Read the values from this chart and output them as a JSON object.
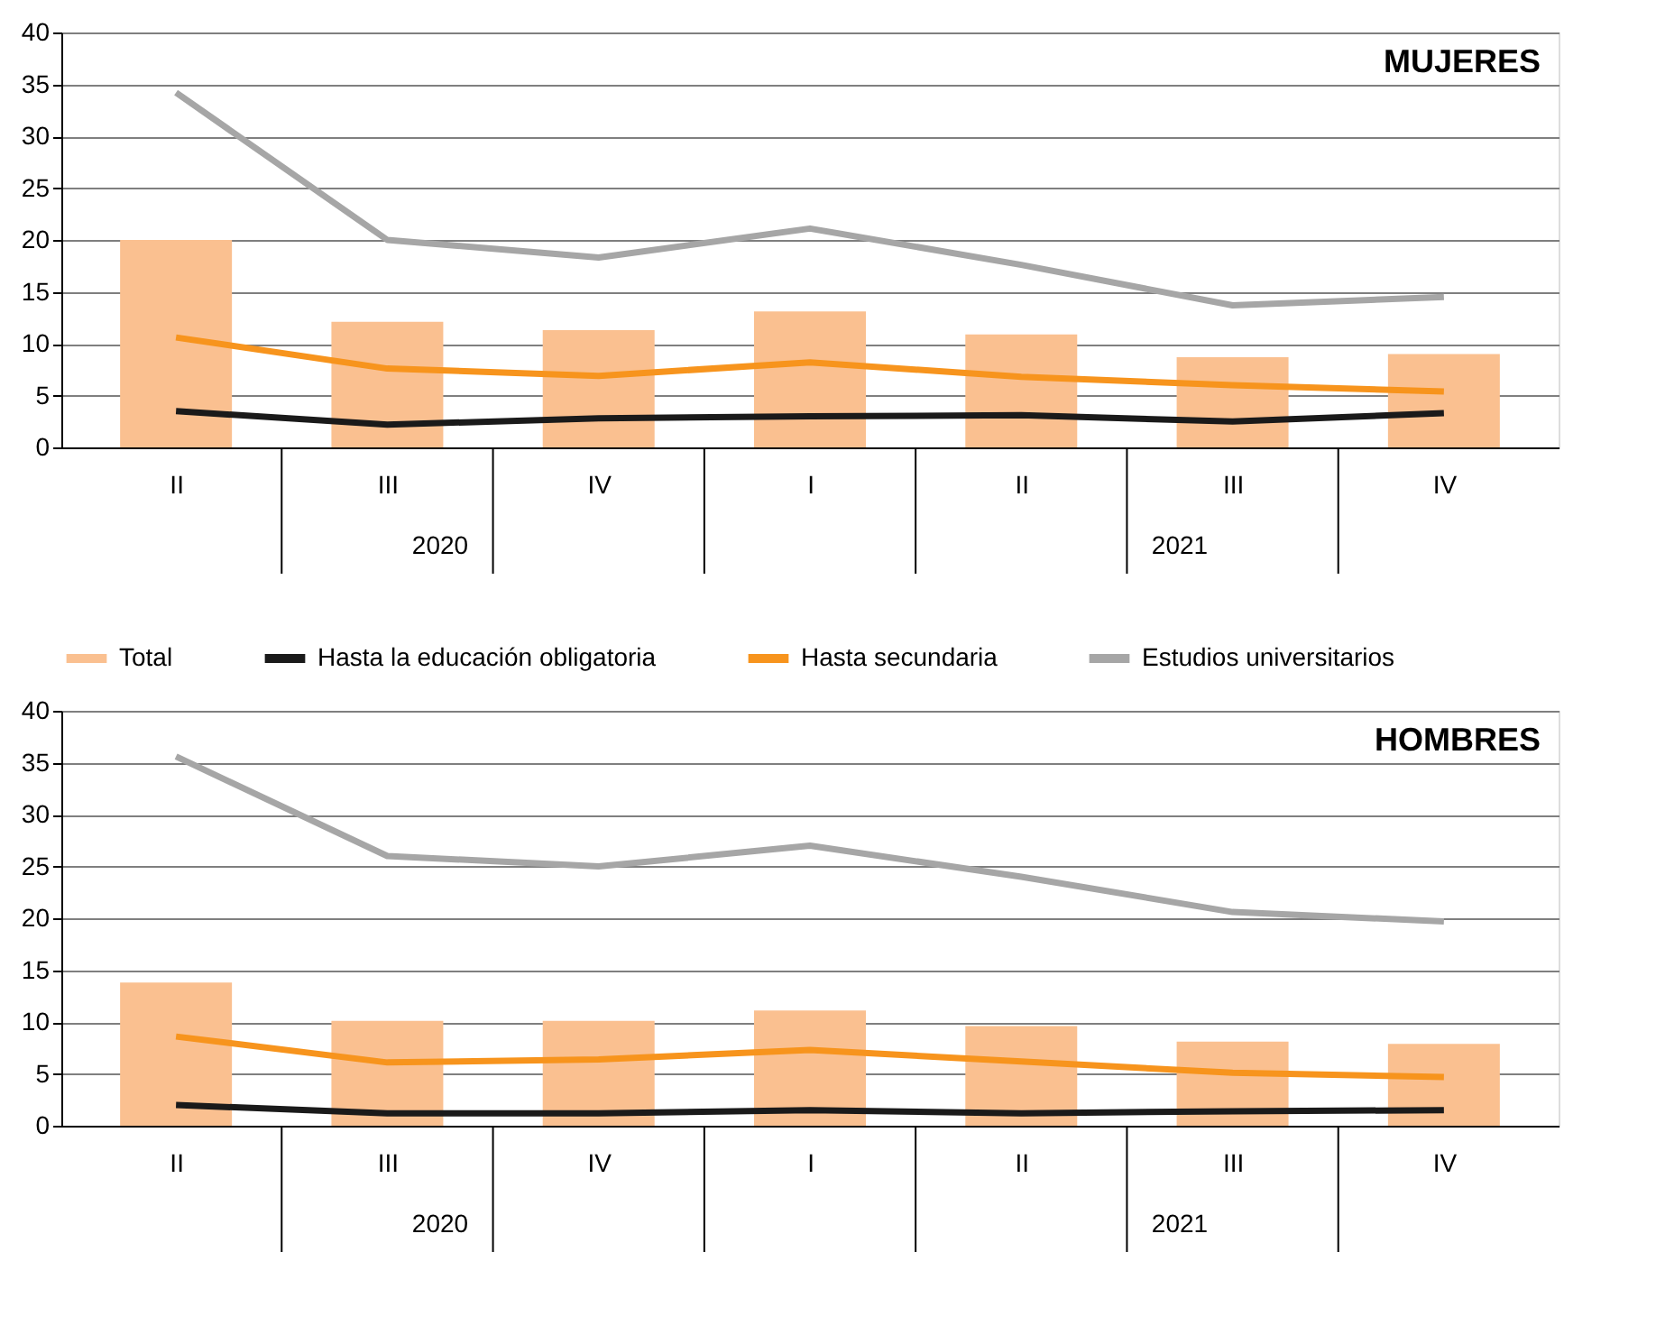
{
  "chart_data": [
    {
      "type": "bar",
      "title": "MUJERES",
      "categories": [
        "II",
        "III",
        "IV",
        "I",
        "II",
        "III",
        "IV"
      ],
      "series": [
        {
          "name": "Total",
          "color": "#fac090",
          "values": [
            20.0,
            12.1,
            11.3,
            13.1,
            10.9,
            8.7,
            9.0
          ]
        },
        {
          "name": "Hasta la educación obligatoria",
          "type": "line",
          "color": "#1a1a1a",
          "values": [
            3.5,
            2.2,
            2.8,
            3.0,
            3.1,
            2.5,
            3.3
          ]
        },
        {
          "name": "Hasta secundaria",
          "type": "line",
          "color": "#f7941d",
          "values": [
            10.6,
            7.6,
            6.9,
            8.2,
            6.8,
            6.0,
            5.4
          ]
        },
        {
          "name": "Estudios universitarios",
          "type": "line",
          "color": "#a6a6a6",
          "values": [
            34.2,
            20.0,
            18.3,
            21.1,
            17.6,
            13.7,
            14.5
          ]
        }
      ],
      "annotations": [
        "2020",
        "2021"
      ],
      "ylim": [
        0,
        40
      ],
      "yticks": [
        0,
        5,
        10,
        15,
        20,
        25,
        30,
        35,
        40
      ],
      "grid": "y",
      "legend": "bottom"
    },
    {
      "type": "bar",
      "title": "HOMBRES",
      "categories": [
        "II",
        "III",
        "IV",
        "I",
        "II",
        "III",
        "IV"
      ],
      "series": [
        {
          "color": "#fac090",
          "values": [
            13.8,
            10.1,
            10.1,
            11.1,
            9.6,
            8.1,
            7.9
          ]
        },
        {
          "type": "line",
          "color": "#1a1a1a",
          "values": [
            2.0,
            1.2,
            1.2,
            1.5,
            1.2,
            1.4,
            1.5
          ]
        },
        {
          "type": "line",
          "color": "#f7941d",
          "values": [
            8.6,
            6.1,
            6.4,
            7.3,
            6.2,
            5.1,
            4.7
          ]
        },
        {
          "type": "line",
          "color": "#a6a6a6",
          "values": [
            35.6,
            26.0,
            25.0,
            27.0,
            24.0,
            20.6,
            19.7
          ]
        }
      ],
      "annotations": [
        "2020",
        "2021"
      ],
      "ylim": [
        0,
        40
      ],
      "yticks": [
        0,
        5,
        10,
        15,
        20,
        25,
        30,
        35,
        40
      ],
      "grid": "y",
      "legend": false
    }
  ]
}
